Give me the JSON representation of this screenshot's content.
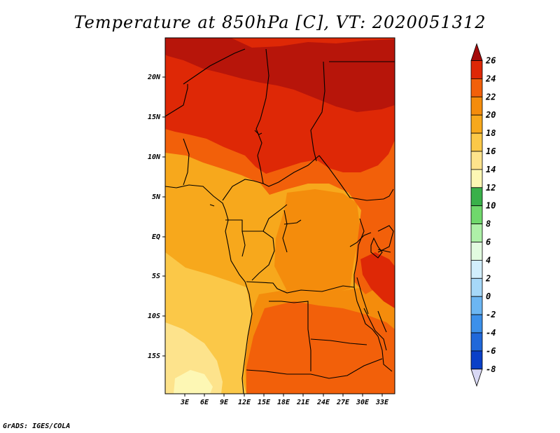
{
  "title": "Temperature at 850hPa [C], VT: 2020051312",
  "credit": "GrADS: IGES/COLA",
  "map": {
    "lat_labels": [
      "20N",
      "15N",
      "10N",
      "5N",
      "EQ",
      "5S",
      "10S",
      "15S"
    ],
    "lon_labels": [
      "3E",
      "6E",
      "9E",
      "12E",
      "15E",
      "18E",
      "21E",
      "24E",
      "27E",
      "30E",
      "33E"
    ]
  },
  "colorbar": {
    "labels": [
      "26",
      "24",
      "22",
      "20",
      "18",
      "16",
      "14",
      "12",
      "10",
      "8",
      "6",
      "4",
      "2",
      "0",
      "-2",
      "-4",
      "-6",
      "-8"
    ],
    "colors": [
      "#a50a0a",
      "#de2806",
      "#f2600a",
      "#f48c0c",
      "#f7a81c",
      "#fbc848",
      "#fde38c",
      "#fdf7b4",
      "#3ab04a",
      "#70d86c",
      "#aef0a8",
      "#e2fbe0",
      "#d2eefc",
      "#a6d8f8",
      "#6cb6f2",
      "#3c90ea",
      "#2068da",
      "#0a40c8",
      "#06249a",
      "#0a0a6a",
      "#d8d8f4"
    ]
  }
}
